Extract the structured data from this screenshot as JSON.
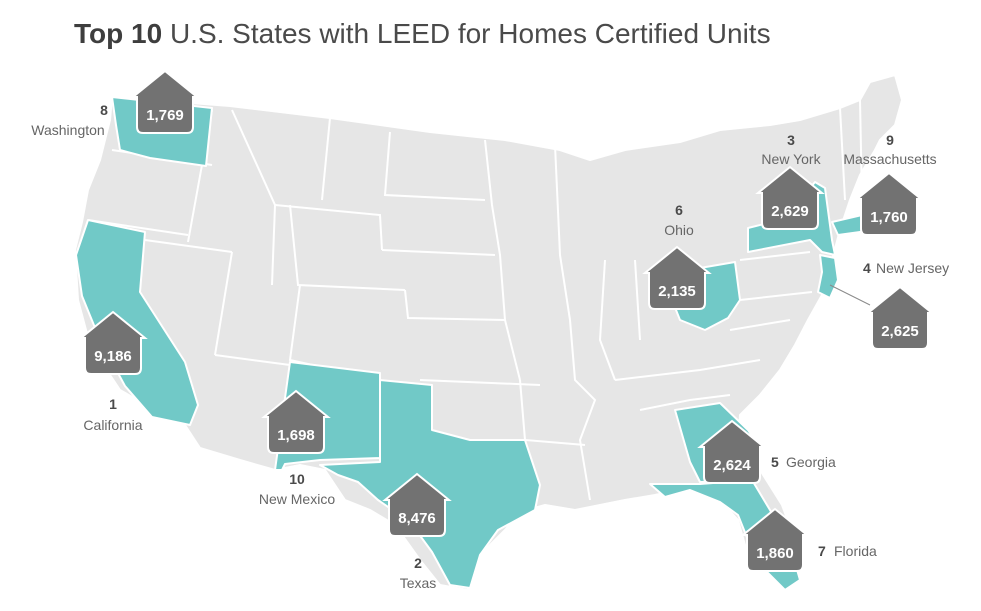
{
  "title": {
    "strong": "Top 10",
    "rest": "U.S. States with LEED for Homes Certified Units"
  },
  "colors": {
    "highlight": "#71c9c7",
    "base": "#e6e6e6",
    "marker": "#727272"
  },
  "marker_icon": "house-icon",
  "states": [
    {
      "rank": "1",
      "name": "California",
      "units": "9,186"
    },
    {
      "rank": "2",
      "name": "Texas",
      "units": "8,476"
    },
    {
      "rank": "3",
      "name": "New York",
      "units": "2,629"
    },
    {
      "rank": "4",
      "name": "New Jersey",
      "units": "2,625"
    },
    {
      "rank": "5",
      "name": "Georgia",
      "units": "2,624"
    },
    {
      "rank": "6",
      "name": "Ohio",
      "units": "2,135"
    },
    {
      "rank": "7",
      "name": "Florida",
      "units": "1,860"
    },
    {
      "rank": "8",
      "name": "Washington",
      "units": "1,769"
    },
    {
      "rank": "9",
      "name": "Massachusetts",
      "units": "1,760"
    },
    {
      "rank": "10",
      "name": "New Mexico",
      "units": "1,698"
    }
  ]
}
